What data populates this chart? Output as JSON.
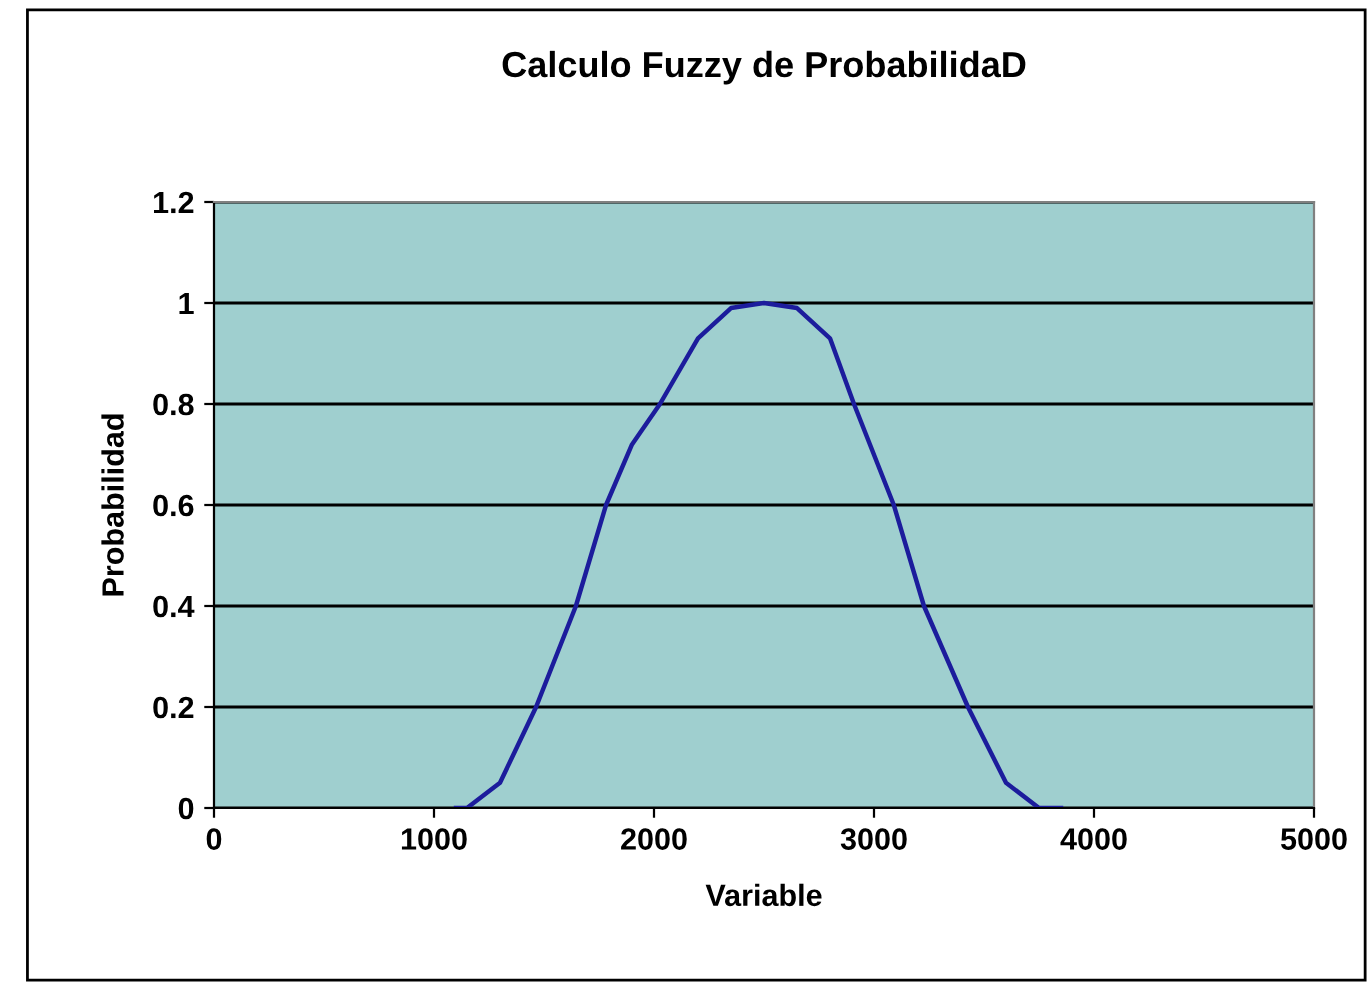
{
  "chart_data": {
    "type": "line",
    "title": "Calculo Fuzzy de ProbabilidaD",
    "xlabel": "Variable",
    "ylabel": "Probabilidad",
    "series": [
      {
        "color": "#1c1c9c",
        "x": [
          1100,
          1150,
          1300,
          1464,
          1645,
          1782,
          1900,
          2027,
          2200,
          2350,
          2500,
          2650,
          2800,
          2909,
          3090,
          3227,
          3427,
          3600,
          3750,
          3850
        ],
        "values": [
          0,
          0,
          0.05,
          0.2,
          0.4,
          0.6,
          0.72,
          0.8,
          0.93,
          0.99,
          1,
          0.99,
          0.93,
          0.8,
          0.6,
          0.4,
          0.2,
          0.05,
          0,
          0
        ]
      }
    ],
    "xlim": [
      0,
      5000
    ],
    "xticks": [
      0,
      1000,
      2000,
      3000,
      4000,
      5000
    ],
    "ylim": [
      0,
      1.2
    ],
    "yticks": [
      0,
      0.2,
      0.4,
      0.6,
      0.8,
      1,
      1.2
    ],
    "grid": "y",
    "legend": false,
    "marker": "none",
    "line_style": "solid"
  }
}
